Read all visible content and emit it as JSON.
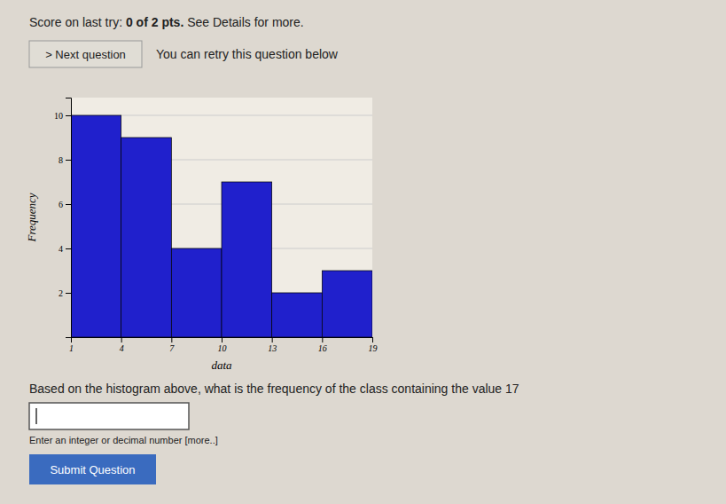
{
  "chart_data": {
    "type": "histogram",
    "bins": [
      1,
      4,
      7,
      10,
      13,
      16,
      19
    ],
    "values": [
      10,
      9,
      4,
      7,
      2,
      3
    ],
    "color": "#2020cc",
    "xlabel": "data",
    "ylabel": "Frequency",
    "xlim": [
      1,
      19
    ],
    "ylim": [
      0,
      10.8
    ],
    "xticks": [
      1,
      4,
      7,
      10,
      13,
      16,
      19
    ],
    "yticks": [
      2,
      4,
      6,
      8,
      10
    ],
    "grid": true
  },
  "score_text": "Score on last try: ",
  "score_bold": "0 of 2 pts.",
  "score_end": " See Details for more.",
  "btn_text": "> Next question",
  "retry_text": "You can retry this question below",
  "question_text": "Based on the histogram above, what is the frequency of the class containing the value 17",
  "input_hint": "Enter an integer or decimal number [more..]",
  "submit_text": "Submit Question"
}
